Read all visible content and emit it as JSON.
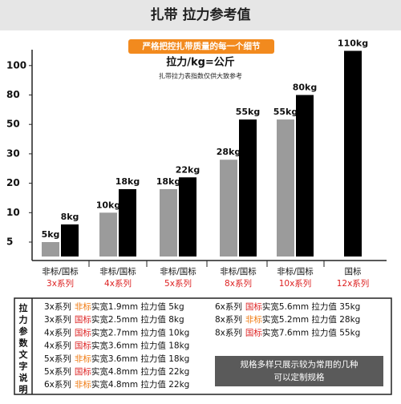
{
  "chart_data": {
    "type": "bar",
    "title": "扎带 拉力参考值",
    "banner": "严格把控扎带质量的每一个细节",
    "unit_label": "拉力/kg=公斤",
    "note": "扎带拉力表指数仅供大致参考",
    "categories": [
      "3x系列",
      "4x系列",
      "5x系列",
      "8x系列",
      "10x系列",
      "12x系列"
    ],
    "sublabels": [
      "非标/国标",
      "非标/国标",
      "非标/国标",
      "非标/国标",
      "非标/国标",
      "国标"
    ],
    "series": [
      {
        "name": "非标",
        "color": "#9b9b9b",
        "values": [
          5,
          10,
          18,
          28,
          55,
          null
        ],
        "value_labels": [
          "5kg",
          "10kg",
          "18kg",
          "28kg",
          "55kg",
          null
        ]
      },
      {
        "name": "国标",
        "color": "#000000",
        "values": [
          8,
          18,
          22,
          55,
          80,
          110
        ],
        "value_labels": [
          "8kg",
          "18kg",
          "22kg",
          "55kg",
          "80kg",
          "110kg"
        ]
      }
    ],
    "ylim": [
      0,
      110
    ],
    "yticks": [
      5,
      10,
      20,
      30,
      50,
      80,
      100
    ]
  },
  "spec_table": {
    "heading": "拉力参数文字说明",
    "left_rows": [
      {
        "series": "3x系列",
        "std": "非标",
        "spec": "实宽1.9mm 拉力值 5kg"
      },
      {
        "series": "3x系列",
        "std": "国标",
        "spec": "实宽2.5mm 拉力值 8kg"
      },
      {
        "series": "4x系列",
        "std": "国标",
        "spec": "实宽2.7mm 拉力值 10kg"
      },
      {
        "series": "4x系列",
        "std": "国标",
        "spec": "实宽3.6mm 拉力值 18kg"
      },
      {
        "series": "5x系列",
        "std": "非标",
        "spec": "实宽3.6mm 拉力值 18kg"
      },
      {
        "series": "5x系列",
        "std": "国标",
        "spec": "实宽4.8mm 拉力值 22kg"
      },
      {
        "series": "6x系列",
        "std": "非标",
        "spec": "实宽4.8mm 拉力值 22kg"
      }
    ],
    "right_rows": [
      {
        "series": "6x系列",
        "std": "国标",
        "spec": "实宽5.6mm 拉力值 35kg"
      },
      {
        "series": "8x系列",
        "std": "非标",
        "spec": "实宽5.2mm 拉力值 28kg"
      },
      {
        "series": "8x系列",
        "std": "国标",
        "spec": "实宽7.6mm 拉力值 55kg"
      }
    ],
    "note_lines": [
      "规格多样只展示较为常用的几种",
      "可以定制规格"
    ]
  }
}
